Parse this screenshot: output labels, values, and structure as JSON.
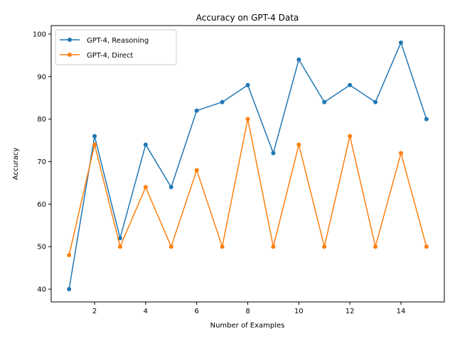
{
  "chart_data": {
    "type": "line",
    "title": "Accuracy on GPT-4 Data",
    "xlabel": "Number of Examples",
    "ylabel": "Accuracy",
    "x": [
      1,
      2,
      3,
      4,
      5,
      6,
      7,
      8,
      9,
      10,
      11,
      12,
      13,
      14,
      15
    ],
    "xlim": [
      0.3,
      15.7
    ],
    "ylim": [
      37,
      102
    ],
    "xticks": [
      2,
      4,
      6,
      8,
      10,
      12,
      14
    ],
    "yticks": [
      40,
      50,
      60,
      70,
      80,
      90,
      100
    ],
    "grid": false,
    "legend_position": "upper-left",
    "series": [
      {
        "name": "GPT-4, Reasoning",
        "color": "#1f77b4",
        "marker": "circle",
        "values": [
          40,
          76,
          52,
          74,
          64,
          82,
          84,
          88,
          72,
          94,
          84,
          88,
          84,
          98,
          80
        ]
      },
      {
        "name": "GPT-4, Direct",
        "color": "#ff7f0e",
        "marker": "circle",
        "values": [
          48,
          74,
          50,
          64,
          50,
          68,
          50,
          80,
          50,
          74,
          50,
          76,
          50,
          72,
          50
        ]
      }
    ]
  }
}
